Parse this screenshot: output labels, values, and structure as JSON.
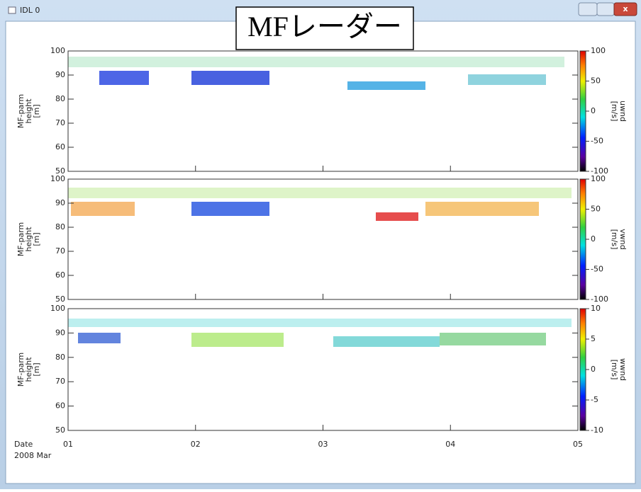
{
  "window": {
    "title": "IDL 0"
  },
  "overlay": "MFレーダー",
  "x_axis": {
    "label": "Date",
    "sublabel": "2008 Mar",
    "ticks": [
      "01",
      "02",
      "03",
      "04",
      "05"
    ]
  },
  "panels": [
    {
      "ylabel_lines": [
        "MF-parm",
        "height",
        "[m]"
      ],
      "ylim": [
        50,
        100
      ],
      "yticks": [
        50,
        60,
        70,
        80,
        90,
        100
      ],
      "colorbar": {
        "label_lines": [
          "uwnd",
          "[m/s]"
        ],
        "lim": [
          -100,
          100
        ],
        "ticks": [
          -100,
          -50,
          0,
          50,
          100
        ]
      }
    },
    {
      "ylabel_lines": [
        "MF-parm",
        "height",
        "[m]"
      ],
      "ylim": [
        50,
        100
      ],
      "yticks": [
        50,
        60,
        70,
        80,
        90,
        100
      ],
      "colorbar": {
        "label_lines": [
          "vwnd",
          "[m/s]"
        ],
        "lim": [
          -100,
          100
        ],
        "ticks": [
          -100,
          -50,
          0,
          50,
          100
        ]
      }
    },
    {
      "ylabel_lines": [
        "MF-parm",
        "height",
        "[m]"
      ],
      "ylim": [
        50,
        100
      ],
      "yticks": [
        50,
        60,
        70,
        80,
        90,
        100
      ],
      "colorbar": {
        "label_lines": [
          "wwnd",
          "[m/s]"
        ],
        "lim": [
          -10,
          10
        ],
        "ticks": [
          -10,
          -5,
          0,
          5,
          10
        ]
      }
    }
  ]
}
